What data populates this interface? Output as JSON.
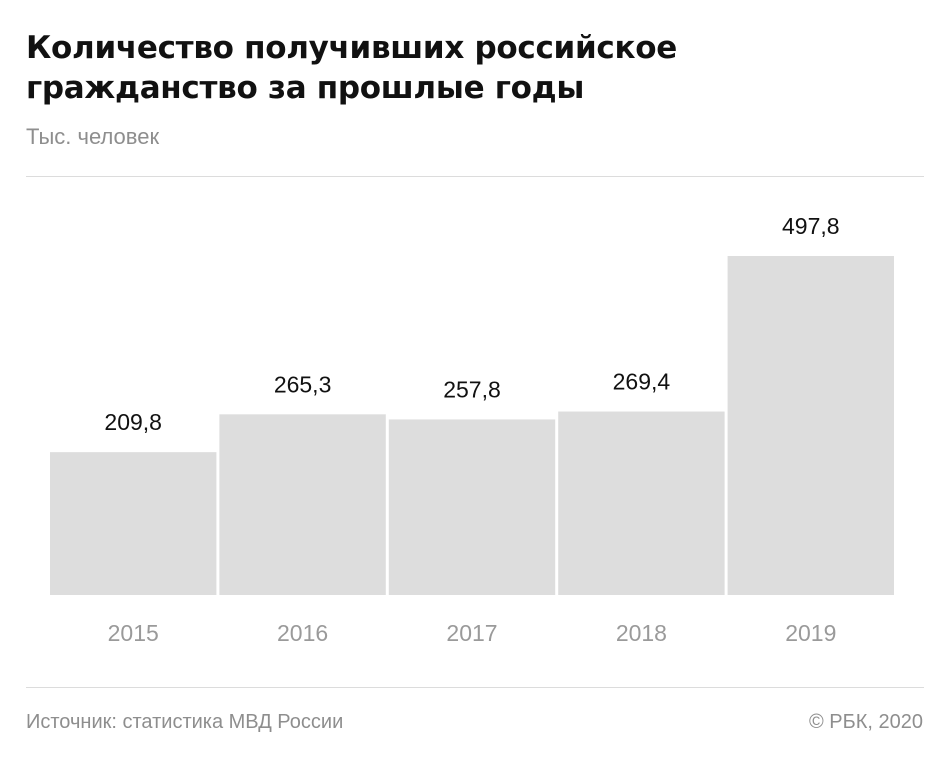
{
  "header": {
    "title_line1": "Количество получивших российское",
    "title_line2": "гражданство за прошлые годы",
    "subtitle": "Тыс. человек"
  },
  "footer": {
    "source": "Источник: статистика МВД России",
    "copyright": "© РБК, 2020"
  },
  "colors": {
    "bar": "#dddddd",
    "value_label": "#111111",
    "category_label": "#9a9a9a",
    "rule": "#dcdcdc"
  },
  "chart_data": {
    "type": "bar",
    "title": "Количество получивших российское гражданство за прошлые годы",
    "subtitle": "Тыс. человек",
    "categories": [
      "2015",
      "2016",
      "2017",
      "2018",
      "2019"
    ],
    "values": [
      209.8,
      265.3,
      257.8,
      269.4,
      497.8
    ],
    "value_labels": [
      "209,8",
      "265,3",
      "257,8",
      "269,4",
      "497,8"
    ],
    "ylim": [
      0,
      497.8
    ],
    "grid": false,
    "legend": "none"
  }
}
